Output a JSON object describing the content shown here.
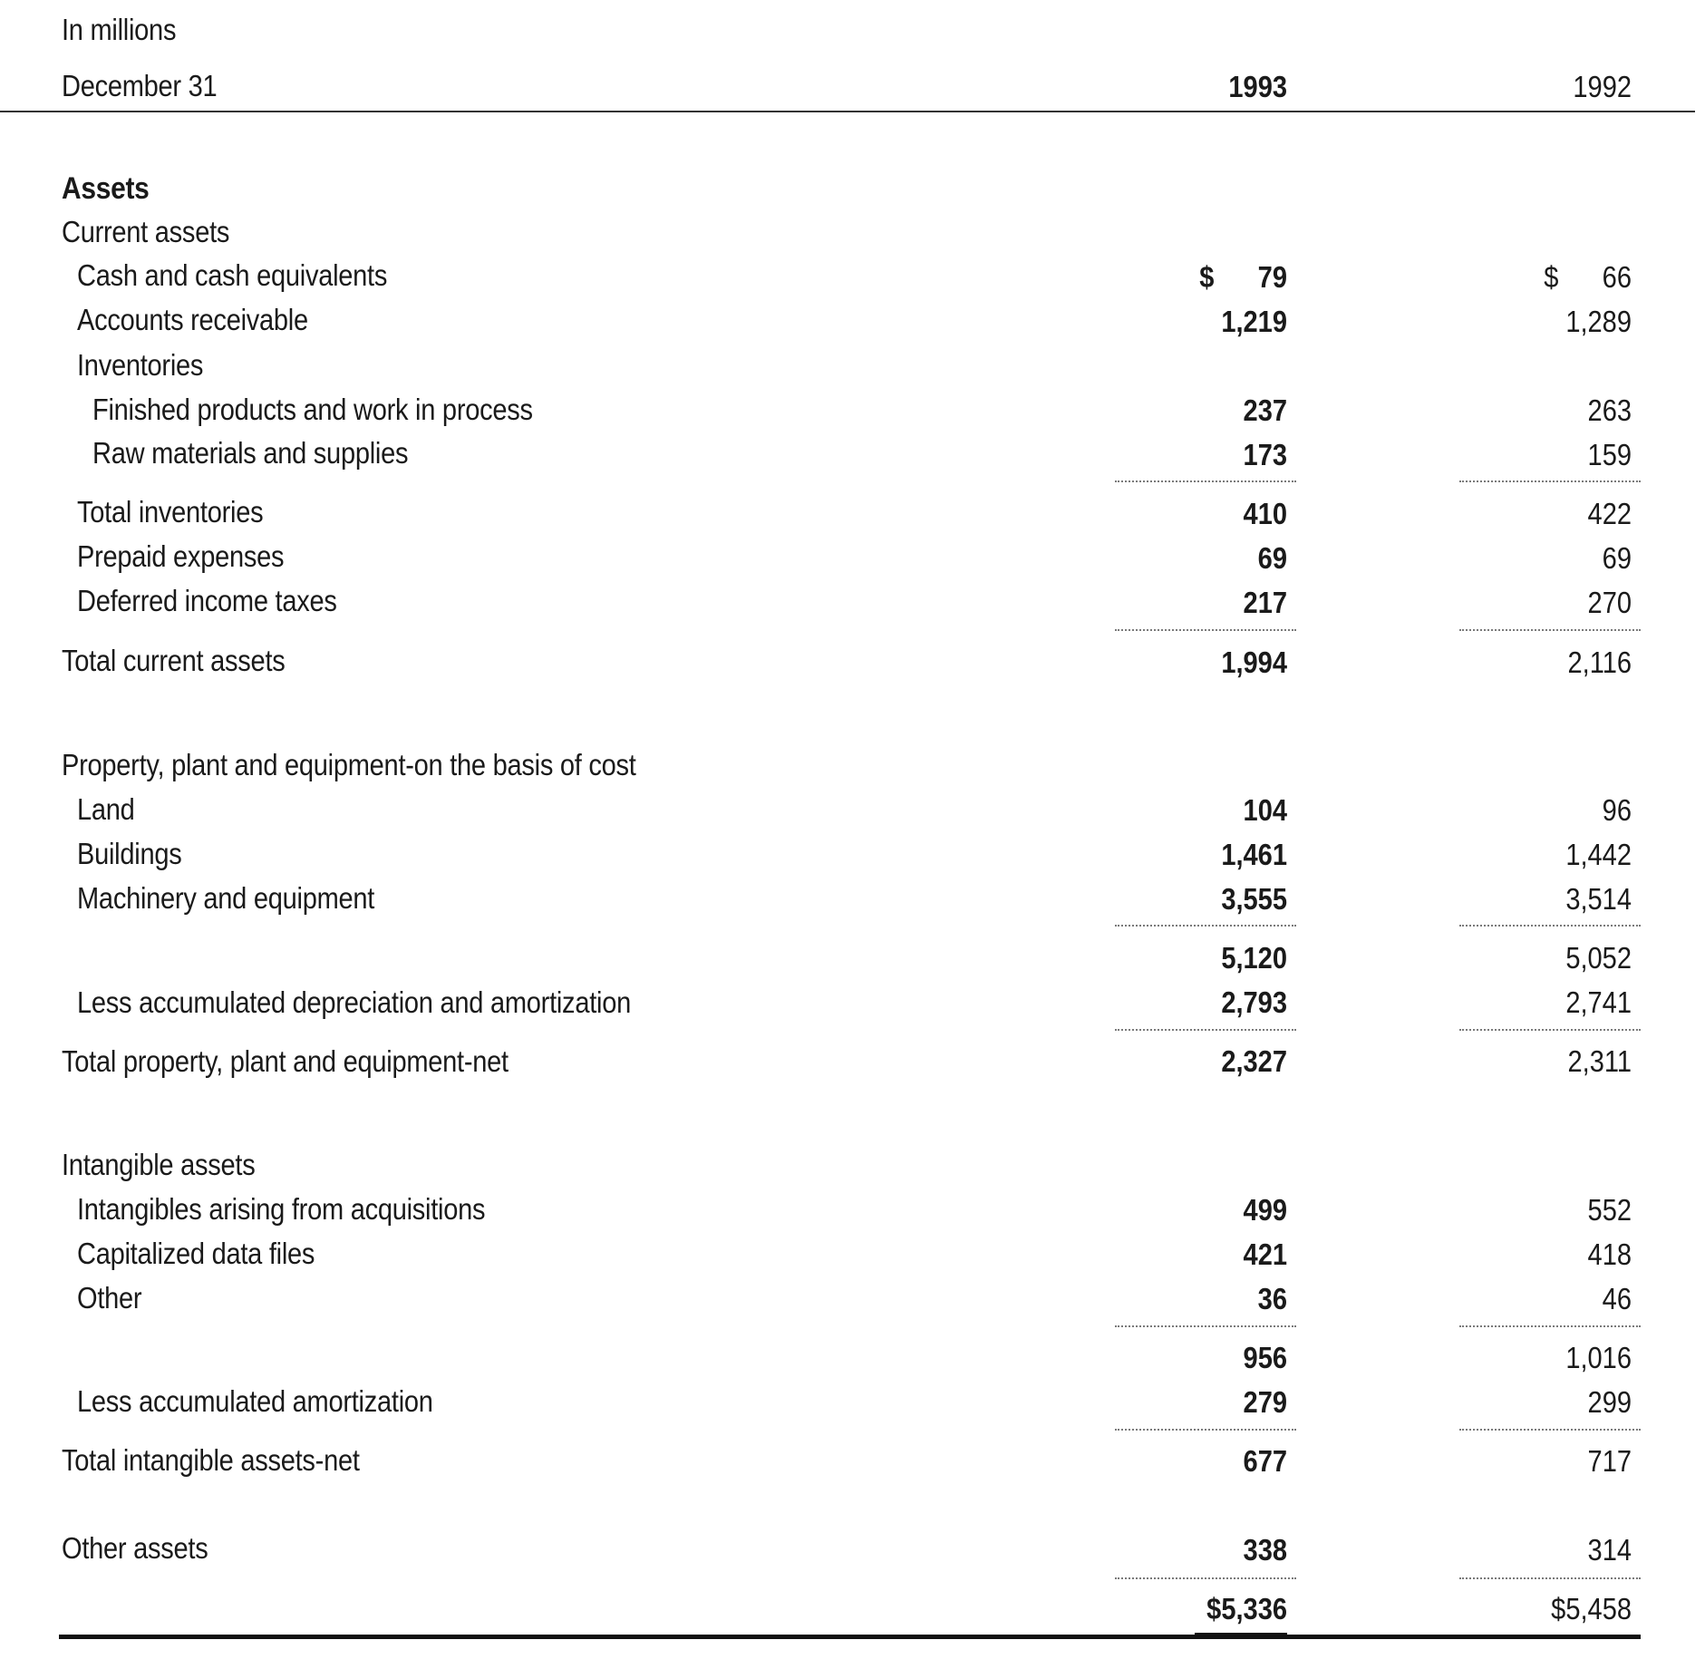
{
  "header": {
    "unit_label": "In millions",
    "date_label": "December 31",
    "year_current": "1993",
    "year_prior": "1992"
  },
  "balance_sheet": {
    "section_title": "Assets",
    "current_assets_heading": "Current assets",
    "rows": {
      "cash": {
        "label": "Cash and cash equivalents",
        "currency": "$",
        "current": "79",
        "prior": "66"
      },
      "receivables": {
        "label": "Accounts receivable",
        "current": "1,219",
        "prior": "1,289"
      },
      "inventories_heading": {
        "label": "Inventories"
      },
      "finished": {
        "label": "Finished products and work in process",
        "current": "237",
        "prior": "263"
      },
      "raw": {
        "label": "Raw materials and supplies",
        "current": "173",
        "prior": "159"
      },
      "total_inventories": {
        "label": "Total inventories",
        "current": "410",
        "prior": "422"
      },
      "prepaid": {
        "label": "Prepaid expenses",
        "current": "69",
        "prior": "69"
      },
      "deferred": {
        "label": "Deferred income taxes",
        "current": "217",
        "prior": "270"
      },
      "total_current": {
        "label": "Total current assets",
        "current": "1,994",
        "prior": "2,116"
      },
      "ppe_heading": {
        "label": "Property, plant and equipment-on the basis of cost"
      },
      "land": {
        "label": "Land",
        "current": "104",
        "prior": "96"
      },
      "buildings": {
        "label": "Buildings",
        "current": "1,461",
        "prior": "1,442"
      },
      "machinery": {
        "label": "Machinery and equipment",
        "current": "3,555",
        "prior": "3,514"
      },
      "ppe_subtotal": {
        "current": "5,120",
        "prior": "5,052"
      },
      "accum_dep": {
        "label": "Less accumulated depreciation and amortization",
        "current": "2,793",
        "prior": "2,741"
      },
      "total_ppe": {
        "label": "Total property, plant and equipment-net",
        "current": "2,327",
        "prior": "2,311"
      },
      "intangibles_heading": {
        "label": "Intangible assets"
      },
      "acquisitions": {
        "label": "Intangibles arising from acquisitions",
        "current": "499",
        "prior": "552"
      },
      "data_files": {
        "label": "Capitalized data files",
        "current": "421",
        "prior": "418"
      },
      "other_intangible": {
        "label": "Other",
        "current": "36",
        "prior": "46"
      },
      "intangible_subtotal": {
        "current": "956",
        "prior": "1,016"
      },
      "accum_amort": {
        "label": "Less accumulated amortization",
        "current": "279",
        "prior": "299"
      },
      "total_intangible": {
        "label": "Total intangible assets-net",
        "current": "677",
        "prior": "717"
      },
      "other_assets": {
        "label": "Other assets",
        "current": "338",
        "prior": "314"
      },
      "total_assets": {
        "current": "$5,336",
        "prior": "$5,458"
      }
    }
  }
}
